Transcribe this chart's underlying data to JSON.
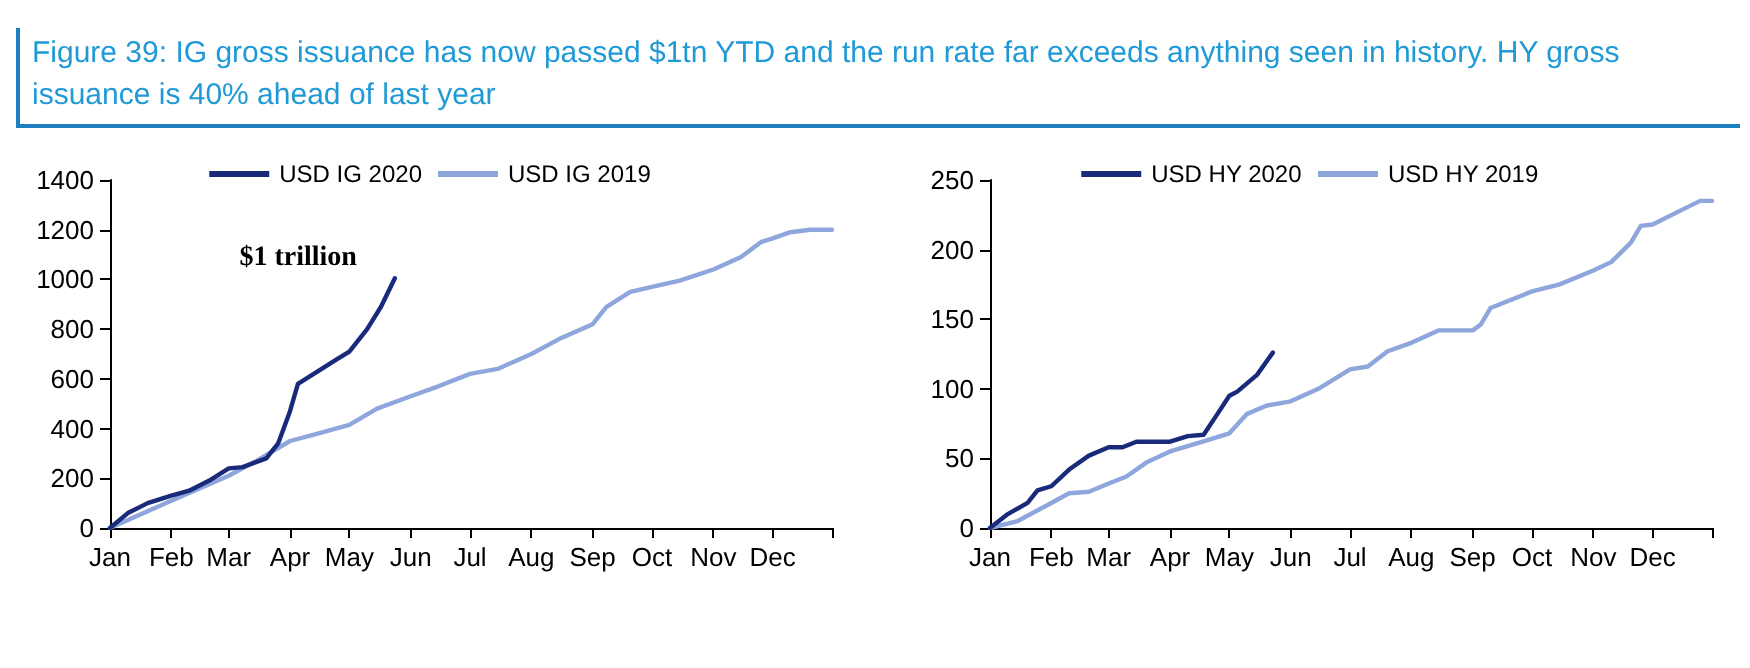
{
  "chart_data": [
    {
      "type": "line",
      "title": "Figure 39: IG gross issuance has now passed $1tn YTD and the run rate far exceeds anything seen in history. HY gross issuance is 40% ahead of last year",
      "xlim": [
        "--01-01",
        "--12-31"
      ],
      "xticks": [
        {
          "value": "--01-01",
          "label": "Jan"
        },
        {
          "value": "--02-01",
          "label": "Feb"
        },
        {
          "value": "--03-01",
          "label": "Mar"
        },
        {
          "value": "--04-01",
          "label": "Apr"
        },
        {
          "value": "--05-01",
          "label": "May"
        },
        {
          "value": "--06-01",
          "label": "Jun"
        },
        {
          "value": "--07-01",
          "label": "Jul"
        },
        {
          "value": "--08-01",
          "label": "Aug"
        },
        {
          "value": "--09-01",
          "label": "Sep"
        },
        {
          "value": "--10-01",
          "label": "Oct"
        },
        {
          "value": "--11-01",
          "label": "Nov"
        },
        {
          "value": "--12-01",
          "label": "Dec"
        },
        {
          "value": "--12-31",
          "label": null
        }
      ],
      "ylim": [
        0,
        1400
      ],
      "yticks": [
        0,
        200,
        400,
        600,
        800,
        1000,
        1200,
        1400
      ],
      "legend": "top",
      "grid": false,
      "marker": "none",
      "line_style": "solid",
      "annotations": [
        {
          "text": "$1 trillion",
          "x": "--05-24",
          "y": 1005
        }
      ],
      "series": [
        {
          "name": "USD IG 2020",
          "color": "#1a2a7a",
          "x": [
            "--01-01",
            "--01-10",
            "--01-20",
            "--02-01",
            "--02-10",
            "--02-20",
            "--03-01",
            "--03-08",
            "--03-20",
            "--03-26",
            "--04-01",
            "--04-05",
            "--04-15",
            "--04-25",
            "--05-01",
            "--05-10",
            "--05-17",
            "--05-24"
          ],
          "values": [
            0,
            60,
            100,
            130,
            150,
            190,
            240,
            245,
            280,
            340,
            470,
            580,
            630,
            680,
            710,
            800,
            890,
            1005
          ]
        },
        {
          "name": "USD IG 2019",
          "color": "#8ea6dc",
          "x": [
            "--01-01",
            "--02-01",
            "--03-01",
            "--03-15",
            "--04-01",
            "--04-15",
            "--05-01",
            "--05-15",
            "--06-01",
            "--06-15",
            "--07-01",
            "--07-15",
            "--08-01",
            "--08-15",
            "--09-01",
            "--09-08",
            "--09-20",
            "--10-01",
            "--10-15",
            "--11-01",
            "--11-15",
            "--11-25",
            "--12-01",
            "--12-10",
            "--12-20",
            "--12-31"
          ],
          "values": [
            0,
            110,
            210,
            270,
            350,
            380,
            415,
            480,
            530,
            570,
            620,
            640,
            700,
            760,
            820,
            890,
            950,
            970,
            995,
            1040,
            1090,
            1150,
            1165,
            1190,
            1200,
            1200
          ]
        }
      ]
    },
    {
      "type": "line",
      "xlim": [
        "--01-01",
        "--12-31"
      ],
      "xticks": [
        {
          "value": "--01-01",
          "label": "Jan"
        },
        {
          "value": "--02-01",
          "label": "Feb"
        },
        {
          "value": "--03-01",
          "label": "Mar"
        },
        {
          "value": "--04-01",
          "label": "Apr"
        },
        {
          "value": "--05-01",
          "label": "May"
        },
        {
          "value": "--06-01",
          "label": "Jun"
        },
        {
          "value": "--07-01",
          "label": "Jul"
        },
        {
          "value": "--08-01",
          "label": "Aug"
        },
        {
          "value": "--09-01",
          "label": "Sep"
        },
        {
          "value": "--10-01",
          "label": "Oct"
        },
        {
          "value": "--11-01",
          "label": "Nov"
        },
        {
          "value": "--12-01",
          "label": "Dec"
        },
        {
          "value": "--12-31",
          "label": null
        }
      ],
      "ylim": [
        0,
        250
      ],
      "yticks": [
        0,
        50,
        100,
        150,
        200,
        250
      ],
      "legend": "top",
      "grid": false,
      "marker": "none",
      "line_style": "solid",
      "series": [
        {
          "name": "USD HY 2020",
          "color": "#1a2a7a",
          "x": [
            "--01-01",
            "--01-10",
            "--01-20",
            "--01-25",
            "--02-01",
            "--02-10",
            "--02-20",
            "--03-01",
            "--03-08",
            "--03-15",
            "--04-01",
            "--04-10",
            "--04-18",
            "--04-25",
            "--05-01",
            "--05-05",
            "--05-15",
            "--05-23"
          ],
          "values": [
            0,
            10,
            18,
            27,
            30,
            42,
            52,
            58,
            58,
            62,
            62,
            66,
            67,
            82,
            95,
            98,
            110,
            126
          ]
        },
        {
          "name": "USD HY 2019",
          "color": "#8ea6dc",
          "x": [
            "--01-01",
            "--01-15",
            "--02-01",
            "--02-10",
            "--02-20",
            "--03-01",
            "--03-10",
            "--03-20",
            "--04-01",
            "--04-15",
            "--05-01",
            "--05-10",
            "--05-20",
            "--06-01",
            "--06-15",
            "--07-01",
            "--07-10",
            "--07-20",
            "--08-01",
            "--08-15",
            "--09-01",
            "--09-05",
            "--09-10",
            "--10-01",
            "--10-15",
            "--11-01",
            "--11-10",
            "--11-20",
            "--11-25",
            "--12-01",
            "--12-15",
            "--12-25",
            "--12-31"
          ],
          "values": [
            0,
            5,
            18,
            25,
            26,
            32,
            37,
            47,
            55,
            61,
            68,
            82,
            88,
            91,
            100,
            114,
            116,
            127,
            133,
            142,
            142,
            146,
            158,
            170,
            175,
            185,
            191,
            205,
            217,
            218,
            228,
            235,
            235
          ]
        }
      ]
    }
  ]
}
